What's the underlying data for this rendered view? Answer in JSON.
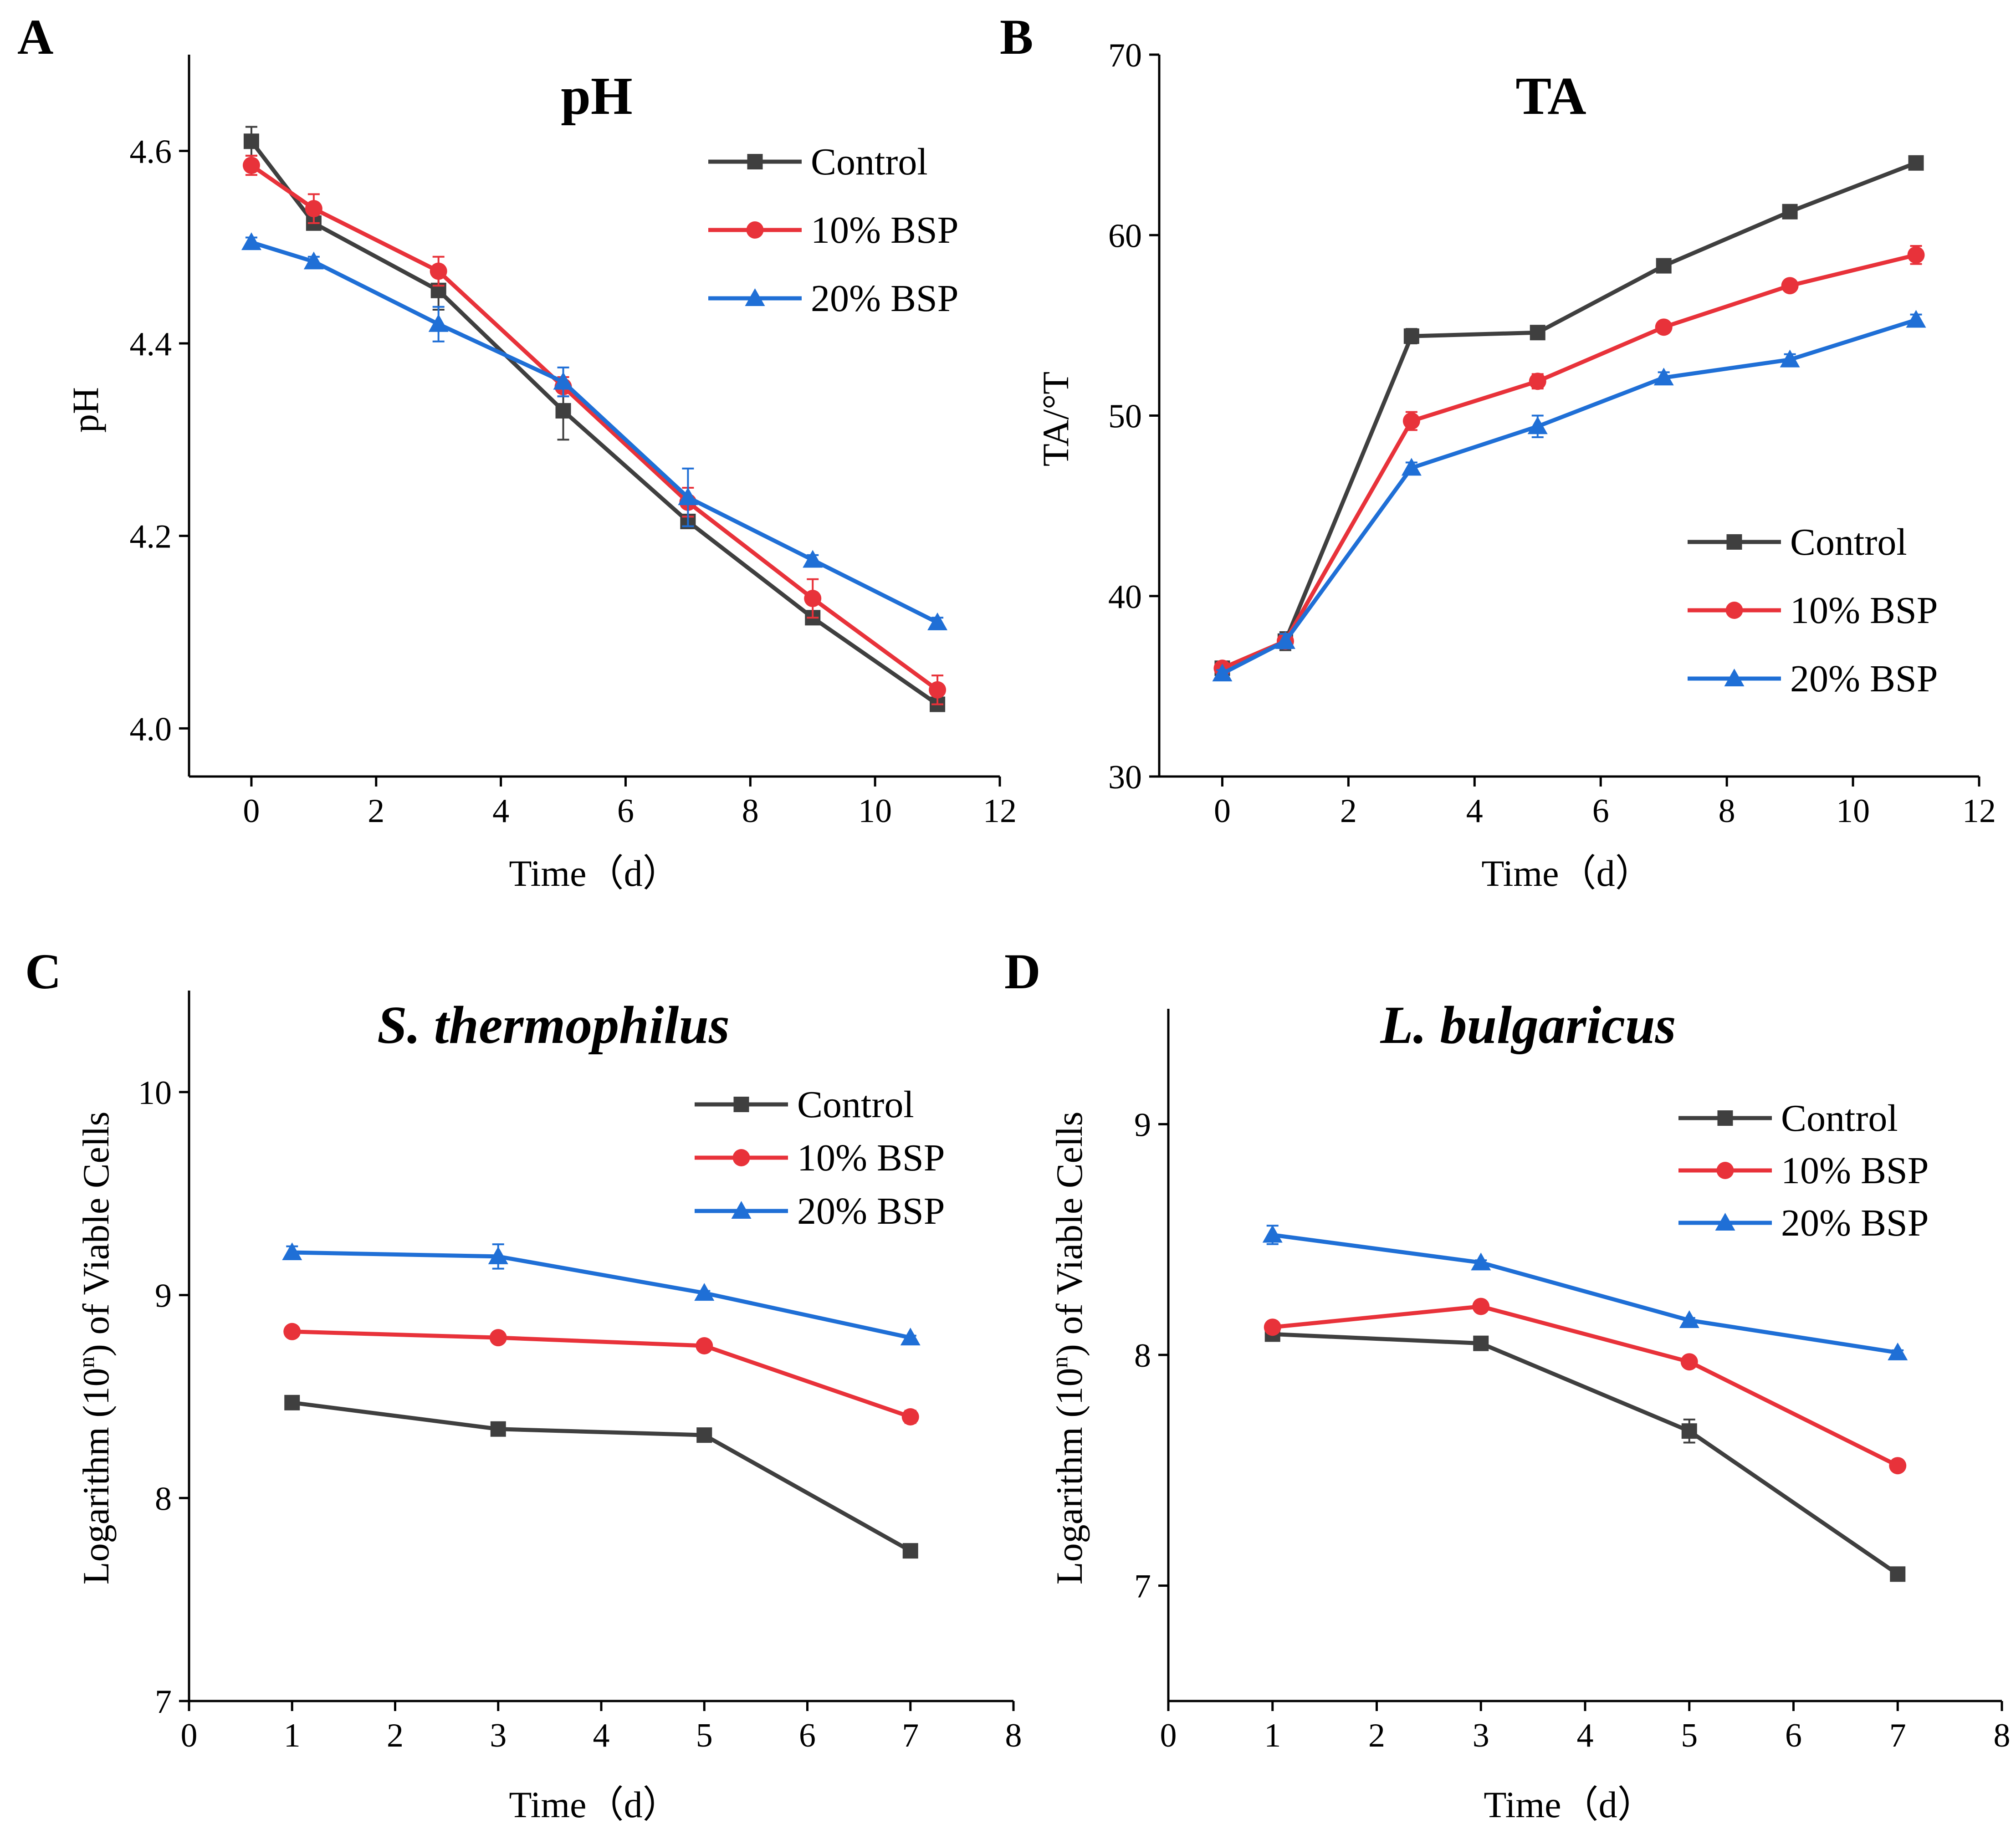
{
  "colors": {
    "control": "#3f3f3f",
    "bsp10": "#e8323a",
    "bsp20": "#1f6fd6",
    "axis": "#000000"
  },
  "chart_data": [
    {
      "panel": "A",
      "type": "line",
      "title": "pH",
      "xlabel": "Time（d）",
      "ylabel": "pH",
      "xlim": [
        -1,
        12
      ],
      "ylim": [
        3.95,
        4.7
      ],
      "xticks": [
        0,
        2,
        4,
        6,
        8,
        10,
        12
      ],
      "xtick_labels": [
        "0",
        "2",
        "4",
        "6",
        "8",
        "10",
        "12"
      ],
      "yticks": [
        4.0,
        4.2,
        4.4,
        4.6
      ],
      "ytick_labels": [
        "4.0",
        "4.2",
        "4.4",
        "4.6"
      ],
      "legend_position": "top-right",
      "x": [
        0,
        1,
        3,
        5,
        7,
        9,
        11
      ],
      "series": [
        {
          "name": "Control",
          "marker": "square",
          "color_key": "control",
          "values": [
            4.61,
            4.525,
            4.455,
            4.33,
            4.215,
            4.115,
            4.025
          ],
          "errors": [
            0.015,
            0.005,
            0.02,
            0.03,
            0.005,
            0.005,
            0.005
          ]
        },
        {
          "name": "10% BSP",
          "marker": "circle",
          "color_key": "bsp10",
          "values": [
            4.585,
            4.54,
            4.475,
            4.355,
            4.235,
            4.135,
            4.04
          ],
          "errors": [
            0.01,
            0.015,
            0.015,
            0.01,
            0.015,
            0.02,
            0.015
          ]
        },
        {
          "name": "20% BSP",
          "marker": "triangle",
          "color_key": "bsp20",
          "values": [
            4.505,
            4.485,
            4.42,
            4.36,
            4.24,
            4.175,
            4.11
          ],
          "errors": [
            0.005,
            0.005,
            0.018,
            0.015,
            0.03,
            0.005,
            0.005
          ]
        }
      ]
    },
    {
      "panel": "B",
      "type": "line",
      "title": "TA",
      "xlabel": "Time（d）",
      "ylabel": "TA/°T",
      "xlim": [
        -1,
        12
      ],
      "ylim": [
        30,
        70
      ],
      "xticks": [
        0,
        2,
        4,
        6,
        8,
        10,
        12
      ],
      "xtick_labels": [
        "0",
        "2",
        "4",
        "6",
        "8",
        "10",
        "12"
      ],
      "yticks": [
        30,
        40,
        50,
        60,
        70
      ],
      "ytick_labels": [
        "30",
        "40",
        "50",
        "60",
        "70"
      ],
      "legend_position": "lower-right",
      "x": [
        0,
        1,
        3,
        5,
        7,
        9,
        11
      ],
      "series": [
        {
          "name": "Control",
          "marker": "square",
          "color_key": "control",
          "values": [
            36.0,
            37.5,
            54.4,
            54.6,
            58.3,
            61.3,
            64.0
          ],
          "errors": [
            0.2,
            0.5,
            0.4,
            0.3,
            0.3,
            0.3,
            0.3
          ]
        },
        {
          "name": "10% BSP",
          "marker": "circle",
          "color_key": "bsp10",
          "values": [
            36.0,
            37.5,
            49.7,
            51.9,
            54.9,
            57.2,
            58.9
          ],
          "errors": [
            0.2,
            0.4,
            0.5,
            0.4,
            0.3,
            0.3,
            0.5
          ]
        },
        {
          "name": "20% BSP",
          "marker": "triangle",
          "color_key": "bsp20",
          "values": [
            35.7,
            37.5,
            47.1,
            49.4,
            52.1,
            53.1,
            55.3
          ],
          "errors": [
            0.2,
            0.4,
            0.3,
            0.6,
            0.3,
            0.3,
            0.3
          ]
        }
      ]
    },
    {
      "panel": "C",
      "type": "line",
      "title": "S. thermophilus",
      "title_italic": true,
      "xlabel": "Time（d）",
      "ylabel_parts": [
        "Logarithm (10",
        "n",
        ") of  Viable Cells"
      ],
      "xlim": [
        0,
        8
      ],
      "ylim": [
        7,
        10.5
      ],
      "xticks": [
        0,
        1,
        2,
        3,
        4,
        5,
        6,
        7,
        8
      ],
      "xtick_labels": [
        "0",
        "1",
        "2",
        "3",
        "4",
        "5",
        "6",
        "7",
        "8"
      ],
      "yticks": [
        7,
        8,
        9,
        10
      ],
      "ytick_labels": [
        "7",
        "8",
        "9",
        "10"
      ],
      "legend_position": "top-right",
      "x": [
        1,
        3,
        5,
        7
      ],
      "series": [
        {
          "name": "Control",
          "marker": "square",
          "color_key": "control",
          "values": [
            8.47,
            8.34,
            8.31,
            7.74
          ],
          "errors": [
            0.01,
            0.01,
            0.03,
            0.01
          ]
        },
        {
          "name": "10%  BSP",
          "marker": "circle",
          "color_key": "bsp10",
          "values": [
            8.82,
            8.79,
            8.75,
            8.4
          ],
          "errors": [
            0.01,
            0.01,
            0.01,
            0.03
          ]
        },
        {
          "name": "20%  BSP",
          "marker": "triangle",
          "color_key": "bsp20",
          "values": [
            9.21,
            9.19,
            9.01,
            8.79
          ],
          "errors": [
            0.03,
            0.06,
            0.01,
            0.01
          ]
        }
      ]
    },
    {
      "panel": "D",
      "type": "line",
      "title": "L. bulgaricus",
      "title_italic": true,
      "xlabel": "Time（d）",
      "ylabel_parts": [
        "Logarithm (10",
        "n",
        ") of  Viable Cells"
      ],
      "xlim": [
        0,
        8
      ],
      "ylim": [
        6.5,
        9.5
      ],
      "xticks": [
        0,
        1,
        2,
        3,
        4,
        5,
        6,
        7,
        8
      ],
      "xtick_labels": [
        "0",
        "1",
        "2",
        "3",
        "4",
        "5",
        "6",
        "7",
        "8"
      ],
      "yticks": [
        7,
        8,
        9
      ],
      "ytick_labels": [
        "7",
        "8",
        "9"
      ],
      "legend_position": "top-right",
      "x": [
        1,
        3,
        5,
        7
      ],
      "series": [
        {
          "name": "Control",
          "marker": "square",
          "color_key": "control",
          "values": [
            8.09,
            8.05,
            7.67,
            7.05
          ],
          "errors": [
            0.01,
            0.01,
            0.05,
            0.01
          ]
        },
        {
          "name": "10%  BSP",
          "marker": "circle",
          "color_key": "bsp10",
          "values": [
            8.12,
            8.21,
            7.97,
            7.52
          ],
          "errors": [
            0.01,
            0.02,
            0.01,
            0.02
          ]
        },
        {
          "name": "20%  BSP",
          "marker": "triangle",
          "color_key": "bsp20",
          "values": [
            8.52,
            8.4,
            8.15,
            8.01
          ],
          "errors": [
            0.04,
            0.01,
            0.01,
            0.01
          ]
        }
      ]
    }
  ]
}
